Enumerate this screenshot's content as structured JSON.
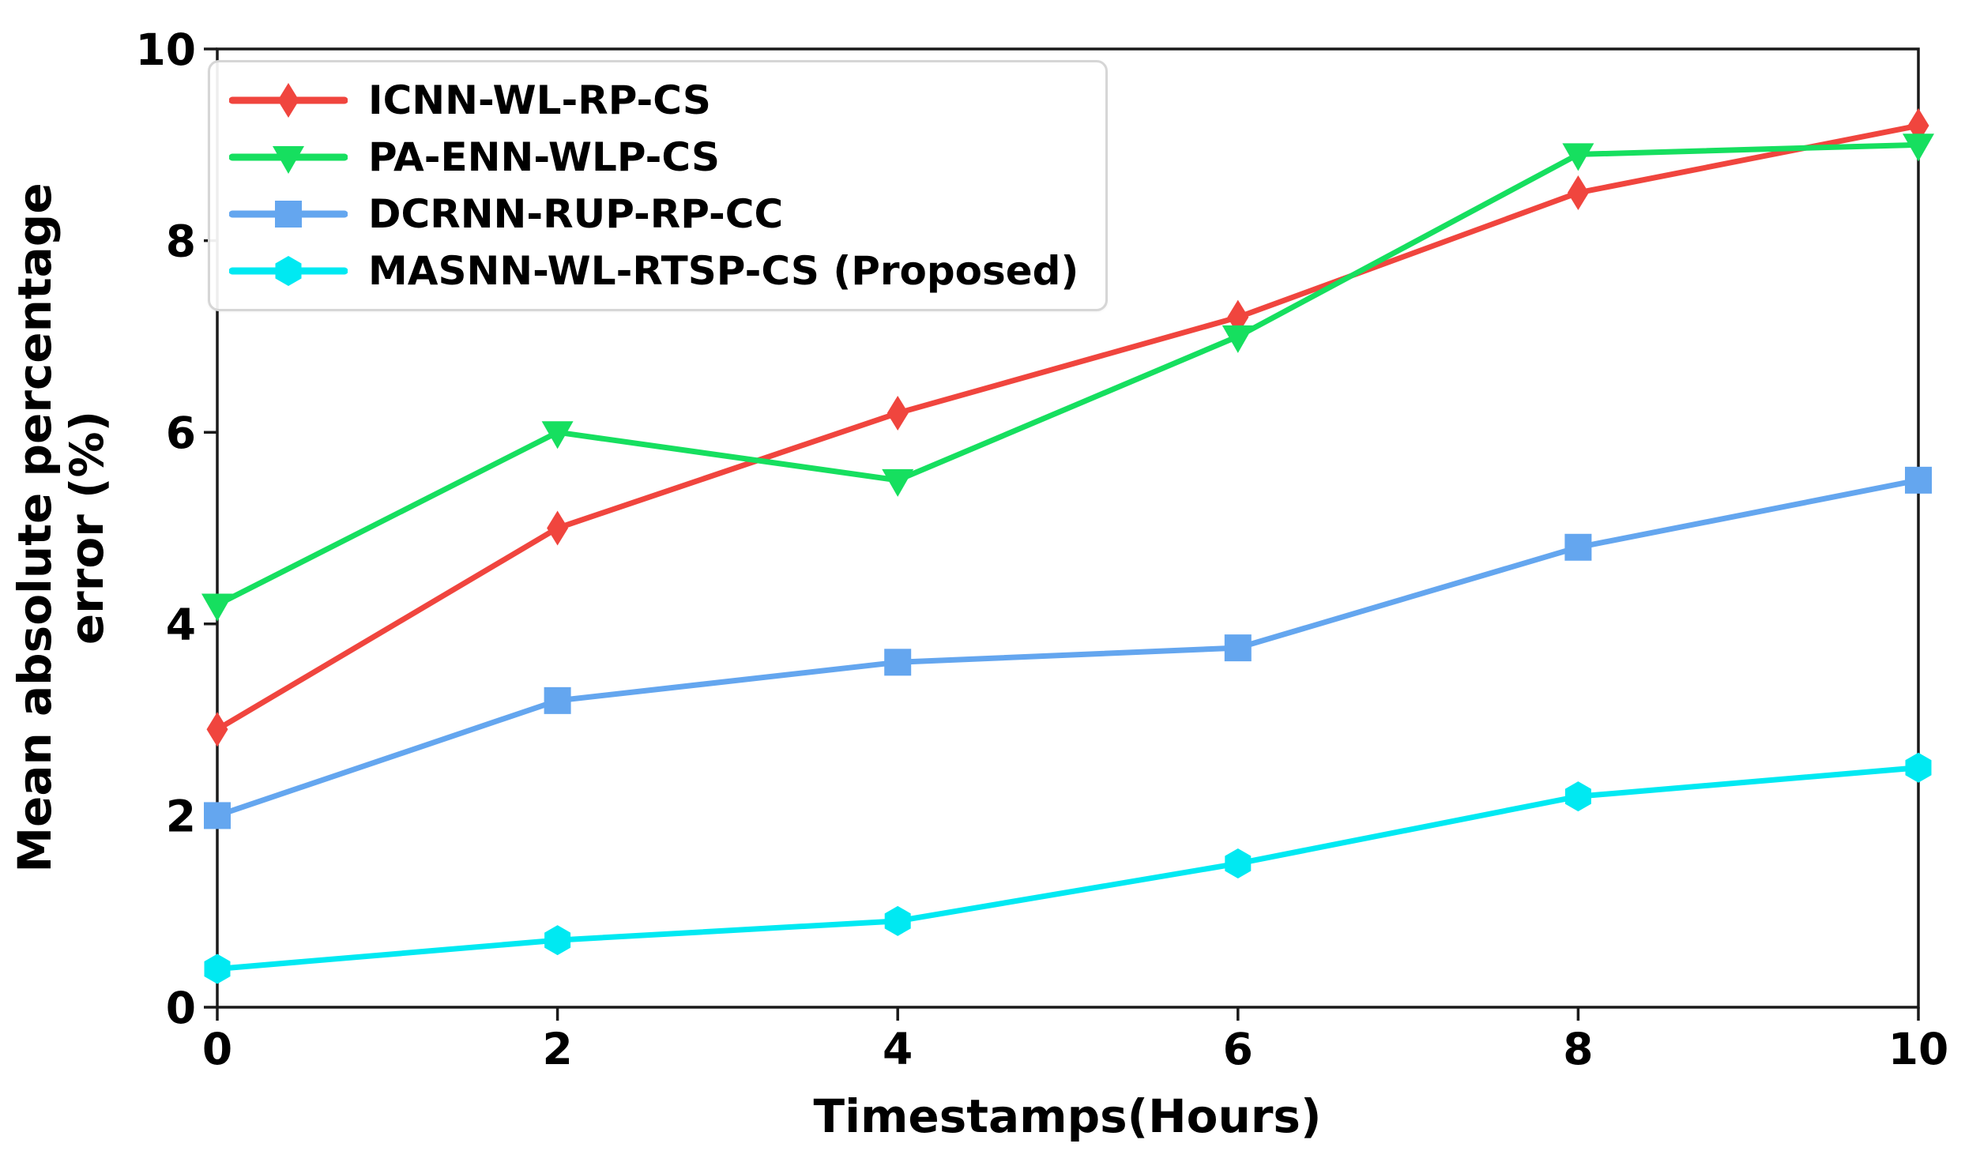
{
  "chart_data": {
    "type": "line",
    "title": "",
    "xlabel": "Timestamps(Hours)",
    "ylabel_line1": "Mean absolute percentage",
    "ylabel_line2": "error (%)",
    "x": [
      0,
      2,
      4,
      6,
      8,
      10
    ],
    "x_ticks": [
      "0",
      "2",
      "4",
      "6",
      "8",
      "10"
    ],
    "y_ticks": [
      "0",
      "2",
      "4",
      "6",
      "8",
      "10"
    ],
    "xlim": [
      0,
      10
    ],
    "ylim": [
      0,
      10
    ],
    "grid": false,
    "legend_position": "upper-left",
    "axis_color": "#1a1a1a",
    "text_color": "#000000",
    "background_color": "#ffffff",
    "series": [
      {
        "name": "ICNN-WL-RP-CS",
        "color": "#F0453E",
        "marker": "thin-diamond",
        "values": [
          2.9,
          5.0,
          6.2,
          7.2,
          8.5,
          9.2
        ]
      },
      {
        "name": "PA-ENN-WLP-CS",
        "color": "#16DF5F",
        "marker": "triangle-down",
        "values": [
          4.2,
          6.0,
          5.5,
          7.0,
          8.9,
          9.0
        ]
      },
      {
        "name": "DCRNN-RUP-RP-CC",
        "color": "#64A6EF",
        "marker": "square",
        "values": [
          2.0,
          3.2,
          3.6,
          3.75,
          4.8,
          5.5
        ]
      },
      {
        "name": "MASNN-WL-RTSP-CS (Proposed)",
        "color": "#00E9F2",
        "marker": "hexagon",
        "values": [
          0.4,
          0.7,
          0.9,
          1.5,
          2.2,
          2.5
        ]
      }
    ]
  }
}
